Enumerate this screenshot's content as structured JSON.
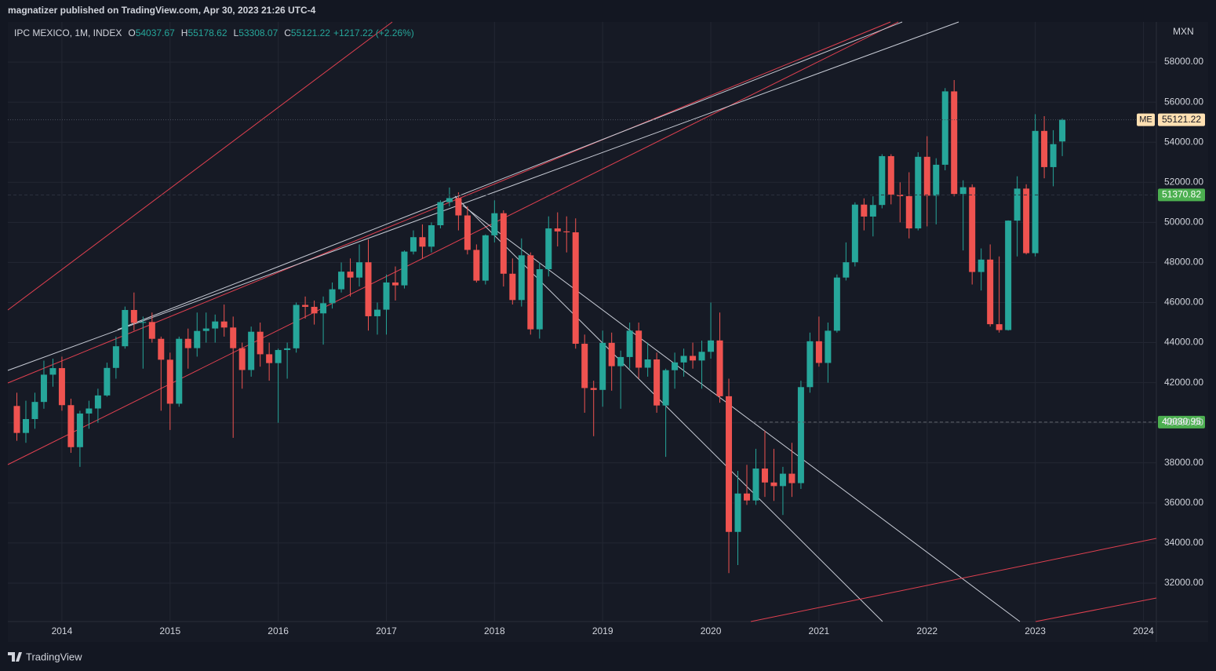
{
  "header": {
    "text": "magnatizer published on TradingView.com, Apr 30, 2023 21:26 UTC-4"
  },
  "footer": {
    "brand": "TradingView"
  },
  "chart_data": {
    "type": "candlestick",
    "symbol": "IPC MEXICO, 1M, INDEX",
    "ohlc_labels": [
      "O",
      "H",
      "L",
      "C"
    ],
    "change": "+1217.22 (+2.26%)",
    "currency": "MXN",
    "last_price_tag": "ME",
    "up_color": "#26a69a",
    "down_color": "#ef5350",
    "grid": true,
    "x": [
      "2013-08",
      "2013-09",
      "2013-10",
      "2013-11",
      "2013-12",
      "2014-01",
      "2014-02",
      "2014-03",
      "2014-04",
      "2014-05",
      "2014-06",
      "2014-07",
      "2014-08",
      "2014-09",
      "2014-10",
      "2014-11",
      "2014-12",
      "2015-01",
      "2015-02",
      "2015-03",
      "2015-04",
      "2015-05",
      "2015-06",
      "2015-07",
      "2015-08",
      "2015-09",
      "2015-10",
      "2015-11",
      "2015-12",
      "2016-01",
      "2016-02",
      "2016-03",
      "2016-04",
      "2016-05",
      "2016-06",
      "2016-07",
      "2016-08",
      "2016-09",
      "2016-10",
      "2016-11",
      "2016-12",
      "2017-01",
      "2017-02",
      "2017-03",
      "2017-04",
      "2017-05",
      "2017-06",
      "2017-07",
      "2017-08",
      "2017-09",
      "2017-10",
      "2017-11",
      "2017-12",
      "2018-01",
      "2018-02",
      "2018-03",
      "2018-04",
      "2018-05",
      "2018-06",
      "2018-07",
      "2018-08",
      "2018-09",
      "2018-10",
      "2018-11",
      "2018-12",
      "2019-01",
      "2019-02",
      "2019-03",
      "2019-04",
      "2019-05",
      "2019-06",
      "2019-07",
      "2019-08",
      "2019-09",
      "2019-10",
      "2019-11",
      "2019-12",
      "2020-01",
      "2020-02",
      "2020-03",
      "2020-04",
      "2020-05",
      "2020-06",
      "2020-07",
      "2020-08",
      "2020-09",
      "2020-10",
      "2020-11",
      "2020-12",
      "2021-01",
      "2021-02",
      "2021-03",
      "2021-04",
      "2021-05",
      "2021-06",
      "2021-07",
      "2021-08",
      "2021-09",
      "2021-10",
      "2021-11",
      "2021-12",
      "2022-01",
      "2022-02",
      "2022-03",
      "2022-04",
      "2022-05",
      "2022-06",
      "2022-07",
      "2022-08",
      "2022-09",
      "2022-10",
      "2022-11",
      "2022-12",
      "2023-01",
      "2023-02",
      "2023-03",
      "2023-04"
    ],
    "open": [
      40838,
      39492,
      40185,
      41039,
      42400,
      42727,
      40879,
      38783,
      40462,
      40712,
      41363,
      42737,
      43818,
      45628,
      44986,
      45028,
      44190,
      43146,
      40951,
      44190,
      43725,
      44582,
      44704,
      45054,
      44753,
      43722,
      42633,
      44543,
      43419,
      42978,
      43631,
      43715,
      45881,
      45785,
      45459,
      45966,
      46661,
      47541,
      47246,
      48009,
      45316,
      45643,
      47001,
      46857,
      48542,
      49261,
      48788,
      49857,
      51012,
      51210,
      50346,
      48626,
      47092,
      49354,
      50456,
      47438,
      46125,
      48355,
      44663,
      47663,
      49698,
      49548,
      49504,
      43943,
      41733,
      41640,
      43988,
      42824,
      43281,
      44597,
      42749,
      43161,
      40863,
      42623,
      43011,
      43337,
      43108,
      43541,
      44108,
      41324,
      34554,
      36470,
      36122,
      37716,
      37020,
      36841,
      37459,
      36988,
      41779,
      44067,
      42986,
      44593,
      47246,
      48010,
      50886,
      50290,
      50868,
      53305,
      51386,
      51310,
      49699,
      53272,
      51331,
      52876,
      56537,
      51418,
      51753,
      47524,
      48143,
      44919,
      44627,
      50087,
      51685,
      48464,
      54564,
      52758,
      54037.67
    ],
    "high": [
      41500,
      41100,
      41500,
      43100,
      43200,
      43300,
      41200,
      40600,
      41100,
      41700,
      43000,
      44300,
      45800,
      46500,
      45300,
      45500,
      44300,
      43500,
      44300,
      44700,
      45500,
      45500,
      45400,
      45900,
      45300,
      44000,
      44800,
      45000,
      44000,
      43700,
      44000,
      46000,
      46300,
      46100,
      46300,
      47000,
      48000,
      48200,
      48900,
      49150,
      46000,
      47400,
      47800,
      48600,
      49600,
      49900,
      50000,
      51100,
      51740,
      51500,
      50800,
      48900,
      49400,
      51100,
      50600,
      48200,
      49200,
      48500,
      48000,
      50300,
      50500,
      50300,
      50200,
      44400,
      42100,
      44600,
      44500,
      43600,
      45000,
      45000,
      44000,
      43500,
      42700,
      43500,
      43700,
      44000,
      44100,
      46000,
      45500,
      42200,
      37600,
      37900,
      38700,
      39600,
      38700,
      37800,
      39000,
      42100,
      44500,
      45300,
      45000,
      47400,
      49000,
      51000,
      51200,
      51300,
      53400,
      53400,
      52000,
      52500,
      53500,
      54300,
      53200,
      56700,
      57100,
      52100,
      51900,
      48700,
      48900,
      48300,
      50100,
      52300,
      51900,
      55400,
      55300,
      54600,
      55178.62
    ],
    "low": [
      39100,
      39000,
      39700,
      40700,
      41800,
      40600,
      38500,
      37800,
      39700,
      40000,
      41300,
      42200,
      43700,
      44600,
      42700,
      44000,
      40600,
      39640,
      40800,
      42700,
      43300,
      44000,
      44000,
      44300,
      39250,
      41700,
      42300,
      42800,
      42100,
      40000,
      42200,
      43500,
      45200,
      44900,
      43900,
      45700,
      46500,
      46300,
      46800,
      44600,
      44400,
      44400,
      46100,
      46700,
      48400,
      48200,
      48500,
      49700,
      50800,
      49600,
      48400,
      47000,
      46900,
      49000,
      46800,
      45900,
      45800,
      44400,
      44200,
      47300,
      48800,
      48500,
      43700,
      40500,
      39330,
      40800,
      41600,
      40700,
      42700,
      42200,
      42300,
      40500,
      38300,
      41700,
      42300,
      42700,
      41700,
      43200,
      41000,
      32500,
      32900,
      35900,
      35900,
      36300,
      36100,
      35400,
      36300,
      36700,
      41500,
      42800,
      42000,
      44500,
      47100,
      47800,
      49600,
      49300,
      50700,
      50900,
      50000,
      49200,
      49600,
      49800,
      49900,
      52600,
      51300,
      48600,
      46900,
      46600,
      44800,
      44500,
      44600,
      48300,
      48400,
      48300,
      52200,
      51800,
      53308.07
    ],
    "close": [
      39492,
      40185,
      41039,
      42400,
      42727,
      40879,
      38783,
      40462,
      40712,
      41363,
      42737,
      43818,
      45628,
      44986,
      45028,
      44190,
      43146,
      40951,
      44190,
      43725,
      44582,
      44704,
      45054,
      44753,
      43722,
      42633,
      44543,
      43419,
      42978,
      43631,
      43715,
      45881,
      45785,
      45459,
      45966,
      46661,
      47541,
      47246,
      48009,
      45316,
      45643,
      47001,
      46857,
      48542,
      49261,
      48788,
      49857,
      51012,
      51210,
      50346,
      48626,
      47092,
      49354,
      50456,
      47438,
      46125,
      48355,
      44663,
      47663,
      49698,
      49548,
      49504,
      43943,
      41733,
      41640,
      43988,
      42824,
      43281,
      44597,
      42749,
      43161,
      40863,
      42623,
      43011,
      43337,
      43108,
      43541,
      44108,
      41324,
      34554,
      36470,
      36122,
      37716,
      37020,
      36841,
      37459,
      36988,
      41779,
      44067,
      42986,
      44593,
      47246,
      48010,
      50886,
      50290,
      50868,
      53305,
      51386,
      51310,
      49699,
      53272,
      51331,
      52876,
      56537,
      51418,
      51753,
      47524,
      48143,
      44919,
      44627,
      50087,
      51685,
      48464,
      54564,
      52758,
      53904,
      55121.22
    ],
    "xlim": [
      2013.5,
      2024.12
    ],
    "xticks": [
      2014,
      2015,
      2016,
      2017,
      2018,
      2019,
      2020,
      2021,
      2022,
      2023,
      2024
    ],
    "ylim": [
      30080,
      60000
    ],
    "yticks": [
      {
        "value": 32000,
        "label": "32000.00"
      },
      {
        "value": 34000,
        "label": "34000.00"
      },
      {
        "value": 36000,
        "label": "36000.00"
      },
      {
        "value": 38000,
        "label": "38000.00"
      },
      {
        "value": 40000,
        "label": "40000.00"
      },
      {
        "value": 42000,
        "label": "42000.00"
      },
      {
        "value": 44000,
        "label": "44000.00"
      },
      {
        "value": 46000,
        "label": "46000.00"
      },
      {
        "value": 48000,
        "label": "48000.00"
      },
      {
        "value": 50000,
        "label": "50000.00"
      },
      {
        "value": 52000,
        "label": "52000.00"
      },
      {
        "value": 54000,
        "label": "54000.00"
      },
      {
        "value": 56000,
        "label": "56000.00"
      },
      {
        "value": 58000,
        "label": "58000.00"
      }
    ],
    "price_lines": [
      {
        "value": 51370.82,
        "color": "#4caf50"
      },
      {
        "value": 40030.95,
        "color": "#4caf50"
      }
    ]
  }
}
